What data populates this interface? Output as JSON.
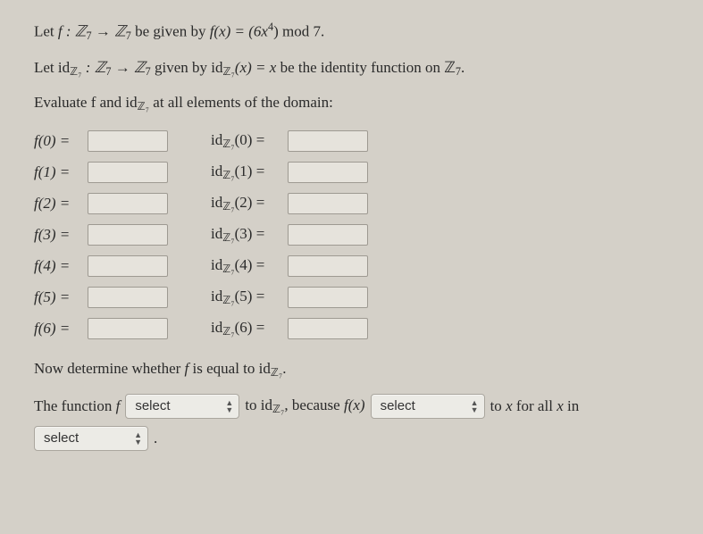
{
  "problem": {
    "line1_pre": "Let ",
    "line1_f": "f : ℤ",
    "line1_sub": "7",
    "line1_arrow": " → ℤ",
    "line1_given": " be given by ",
    "line1_fx": "f(x) = (6x",
    "line1_exp": "4",
    "line1_post": ") mod 7.",
    "line2_pre": "Let id",
    "line2_sub1": "ℤ₇",
    "line2_colon": " : ℤ",
    "line2_sub2": "7",
    "line2_arrow": " → ℤ",
    "line2_sub3": "7",
    "line2_given": " given by id",
    "line2_sub4": "ℤ₇",
    "line2_fx": "(x) = x",
    "line2_post": " be the identity function on ℤ",
    "line2_sub5": "7",
    "line2_dot": ".",
    "line3": "Evaluate f and id",
    "line3_sub": "ℤ₇",
    "line3_post": " at all elements of the domain:"
  },
  "f_rows": [
    {
      "label": "f(0) ="
    },
    {
      "label": "f(1) ="
    },
    {
      "label": "f(2) ="
    },
    {
      "label": "f(3) ="
    },
    {
      "label": "f(4) ="
    },
    {
      "label": "f(5) ="
    },
    {
      "label": "f(6) ="
    }
  ],
  "id_rows": [
    {
      "label_pre": "id",
      "label_arg": "(0) ="
    },
    {
      "label_pre": "id",
      "label_arg": "(1) ="
    },
    {
      "label_pre": "id",
      "label_arg": "(2) ="
    },
    {
      "label_pre": "id",
      "label_arg": "(3) ="
    },
    {
      "label_pre": "id",
      "label_arg": "(4) ="
    },
    {
      "label_pre": "id",
      "label_arg": "(5) ="
    },
    {
      "label_pre": "id",
      "label_arg": "(6) ="
    }
  ],
  "id_sub": "ℤ₇",
  "determine": {
    "pre": "Now determine whether ",
    "f": "f",
    "mid": " is equal to id",
    "sub": "ℤ₇",
    "dot": "."
  },
  "answer_line": {
    "pre": "The function ",
    "f": "f",
    "select1": "select",
    "mid": " to id",
    "sub": "ℤ₇",
    "because": ", because ",
    "fx": "f(x)",
    "select2": "select",
    "to_x": " to ",
    "x": "x",
    "forall": " for all ",
    "x2": "x",
    "in": " in",
    "select3": "select",
    "dot": "."
  },
  "colors": {
    "background": "#d4d0c8",
    "text": "#2a2a2a",
    "input_bg": "#e6e3dc",
    "input_border": "#9e9a92",
    "select_bg": "#ecebe6",
    "select_border": "#aaa69e"
  }
}
